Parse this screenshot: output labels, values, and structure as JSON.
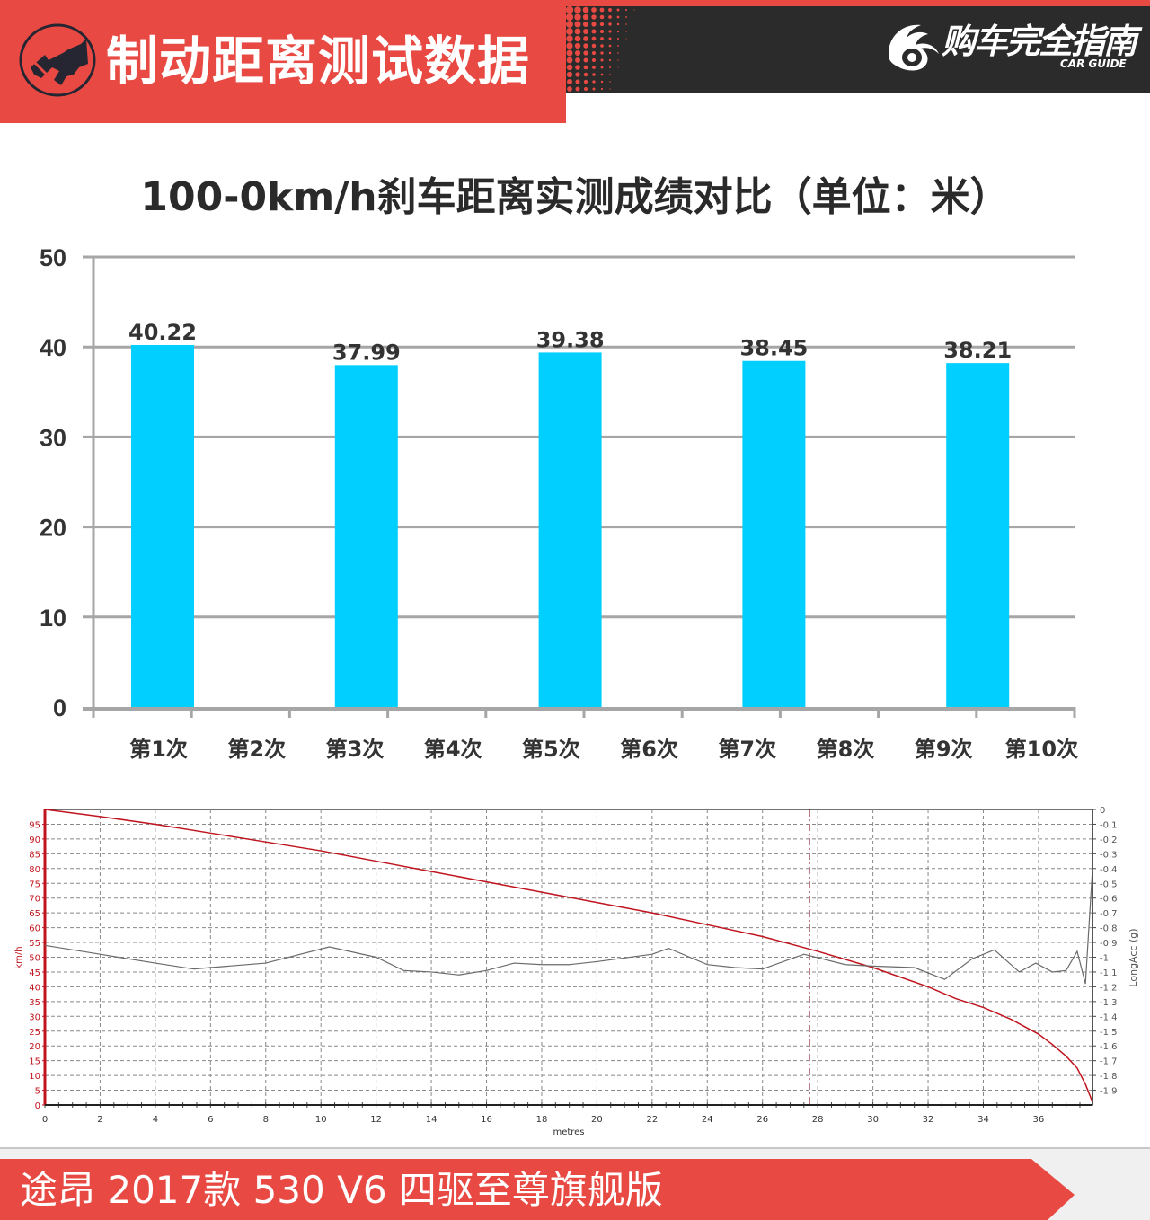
{
  "header": {
    "title": "制动距离测试数据",
    "icon": "brake-pedal-icon",
    "logo_text": "购车完全指南",
    "logo_sub": "CAR GUIDE",
    "logo_icon": "eye-flame-logo-icon"
  },
  "colors": {
    "header_red": "#e84a43",
    "header_dark": "#2b2b2b",
    "bar_fill": "#00cfff",
    "grid": "#a6a6a6",
    "speed_line": "#c0141e",
    "acc_line": "#6a6a6a"
  },
  "footer": {
    "model": "途昂 2017款 530 V6 四驱至尊旗舰版"
  },
  "chart_data": [
    {
      "type": "bar",
      "title": "100-0km/h刹车距离实测成绩对比（单位：米）",
      "categories": [
        "第1次",
        "第2次",
        "第3次",
        "第4次",
        "第5次",
        "第6次",
        "第7次",
        "第8次",
        "第9次",
        "第10次"
      ],
      "values": [
        40.22,
        null,
        37.99,
        null,
        39.38,
        null,
        38.45,
        null,
        38.21,
        null
      ],
      "data_labels": [
        "40.22",
        "",
        "37.99",
        "",
        "39.38",
        "",
        "38.45",
        "",
        "38.21",
        ""
      ],
      "xlabel": "",
      "ylabel": "",
      "ylim": [
        0,
        50
      ],
      "yticks": [
        0,
        10,
        20,
        30,
        40,
        50
      ],
      "grid": true,
      "legend": "none"
    },
    {
      "type": "line",
      "title": "",
      "xlabel": "metres",
      "ylabel": "km/h",
      "y2label": "LongAcc (g)",
      "xlim": [
        0,
        38
      ],
      "xticks": [
        0,
        2,
        4,
        6,
        8,
        10,
        12,
        14,
        16,
        18,
        20,
        22,
        24,
        26,
        28,
        30,
        32,
        34,
        36
      ],
      "ylim": [
        0,
        100
      ],
      "yticks": [
        0,
        5,
        10,
        15,
        20,
        25,
        30,
        35,
        40,
        45,
        50,
        55,
        60,
        65,
        70,
        75,
        80,
        85,
        90,
        95
      ],
      "y2lim": [
        -2,
        0
      ],
      "y2ticks": [
        "0",
        "-0.1",
        "-0.2",
        "-0.3",
        "-0.4",
        "-0.5",
        "-0.6",
        "-0.7",
        "-0.8",
        "-0.9",
        "-1",
        "-1.1",
        "-1.2",
        "-1.3",
        "-1.4",
        "-1.5",
        "-1.6",
        "-1.7",
        "-1.8",
        "-1.9"
      ],
      "grid": true,
      "marker_x": 27.7,
      "series": [
        {
          "name": "Speed (km/h)",
          "axis": "left",
          "x": [
            0,
            2,
            4,
            6,
            8,
            10,
            12,
            14,
            16,
            18,
            20,
            22,
            24,
            26,
            28,
            30,
            32,
            33,
            34,
            35,
            36,
            36.5,
            37,
            37.4,
            37.7,
            38
          ],
          "values": [
            100,
            97.6,
            95,
            92,
            89,
            86,
            82.5,
            79,
            75.5,
            72,
            68.5,
            65,
            61,
            57,
            52,
            46.5,
            40,
            36,
            33,
            29,
            24,
            20.5,
            16.5,
            12.5,
            7,
            1
          ]
        },
        {
          "name": "LongAcc (g)",
          "axis": "right",
          "x": [
            0,
            2,
            4,
            5.4,
            6,
            8,
            10.3,
            12,
            13,
            14,
            15,
            16,
            17,
            18,
            19,
            20,
            22,
            22.6,
            24,
            25,
            26,
            27.5,
            29,
            30,
            31.5,
            32.6,
            33.6,
            34.4,
            35.3,
            35.9,
            36.5,
            37,
            37.4,
            37.7,
            38
          ],
          "values": [
            -0.92,
            -0.98,
            -1.04,
            -1.08,
            -1.07,
            -1.04,
            -0.93,
            -1.0,
            -1.09,
            -1.1,
            -1.12,
            -1.09,
            -1.04,
            -1.05,
            -1.05,
            -1.03,
            -0.98,
            -0.94,
            -1.05,
            -1.07,
            -1.08,
            -0.98,
            -1.05,
            -1.06,
            -1.07,
            -1.15,
            -1.01,
            -0.95,
            -1.1,
            -1.04,
            -1.1,
            -1.09,
            -0.96,
            -1.18,
            -0.4
          ]
        }
      ]
    }
  ]
}
